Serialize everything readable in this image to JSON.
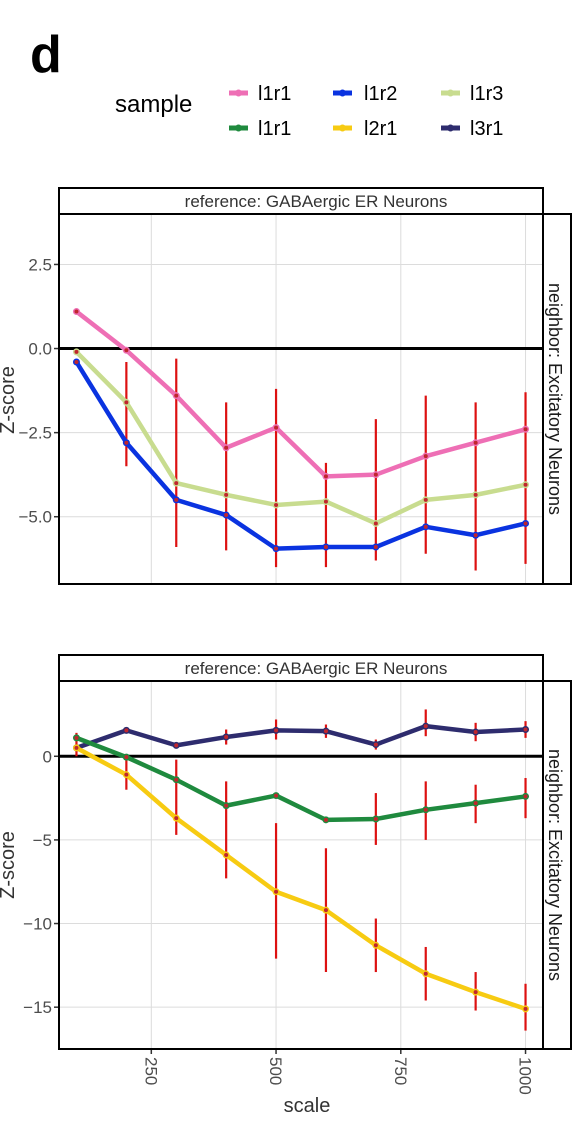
{
  "panel_label": "d",
  "legend": {
    "title": "sample",
    "items": [
      {
        "label": "l1r1",
        "color": "#ee6fb5"
      },
      {
        "label": "l1r2",
        "color": "#0a33e0"
      },
      {
        "label": "l1r3",
        "color": "#c8dc8f"
      },
      {
        "label": "l1r1",
        "color": "#1f8a3e"
      },
      {
        "label": "l2r1",
        "color": "#f7cb12"
      },
      {
        "label": "l3r1",
        "color": "#2e2c6e"
      }
    ]
  },
  "chart_data": [
    {
      "type": "line",
      "strip_top": "reference: GABAergic ER Neurons",
      "strip_right": "neighbor: Excitatory Neurons",
      "ylabel": "Z-score",
      "xlim": [
        65,
        1035
      ],
      "ylim": [
        -7.0,
        4.0
      ],
      "yticks": [
        2.5,
        0.0,
        -2.5,
        -5.0
      ],
      "ytick_labels": [
        "2.5",
        "0.0",
        "−2.5",
        "−5.0"
      ],
      "xgrid": [
        250,
        500,
        750,
        1000
      ],
      "series": [
        {
          "name": "l1r1",
          "color": "#ee6fb5",
          "x": [
            100,
            200,
            300,
            400,
            500,
            600,
            700,
            800,
            900,
            1000
          ],
          "y": [
            1.1,
            -0.05,
            -1.4,
            -2.95,
            -2.35,
            -3.8,
            -3.75,
            -3.2,
            -2.8,
            -2.4
          ],
          "err": [
            0.35,
            0.0,
            0.0,
            0.0,
            0.0,
            0.0,
            0.0,
            0.0,
            0.0,
            0.0
          ]
        },
        {
          "name": "l1r3",
          "color": "#c8dc8f",
          "x": [
            100,
            200,
            300,
            400,
            500,
            600,
            700,
            800,
            900,
            1000
          ],
          "y": [
            -0.1,
            -1.6,
            -4.0,
            -4.35,
            -4.65,
            -4.55,
            -5.2,
            -4.5,
            -4.35,
            -4.05
          ],
          "err": [
            0.0,
            0.0,
            0.0,
            0.0,
            0.0,
            0.0,
            0.0,
            0.0,
            0.0,
            0.0
          ]
        },
        {
          "name": "l1r2",
          "color": "#0a33e0",
          "x": [
            100,
            200,
            300,
            400,
            500,
            600,
            700,
            800,
            900,
            1000
          ],
          "y": [
            -0.4,
            -2.8,
            -4.5,
            -4.95,
            -5.95,
            -5.9,
            -5.9,
            -5.3,
            -5.55,
            -5.2
          ],
          "err": [
            0.45,
            0.65,
            1.4,
            1.1,
            0.55,
            0.55,
            0.45,
            0.75,
            1.0,
            1.15
          ]
        }
      ],
      "error_bars": [
        {
          "x": 200,
          "low": -3.5,
          "high": -0.4
        },
        {
          "x": 300,
          "low": -5.9,
          "high": -0.3
        },
        {
          "x": 400,
          "low": -6.0,
          "high": -1.6
        },
        {
          "x": 500,
          "low": -6.5,
          "high": -1.2
        },
        {
          "x": 600,
          "low": -6.5,
          "high": -3.4
        },
        {
          "x": 700,
          "low": -6.3,
          "high": -2.1
        },
        {
          "x": 800,
          "low": -6.1,
          "high": -1.4
        },
        {
          "x": 900,
          "low": -6.6,
          "high": -1.6
        },
        {
          "x": 1000,
          "low": -6.4,
          "high": -1.3
        }
      ]
    },
    {
      "type": "line",
      "strip_top": "reference: GABAergic ER Neurons",
      "strip_right": "neighbor: Excitatory Neurons",
      "ylabel": "Z-score",
      "xlabel": "scale",
      "xlim": [
        65,
        1035
      ],
      "ylim": [
        -17.5,
        4.5
      ],
      "yticks": [
        0,
        -5,
        -10,
        -15
      ],
      "ytick_labels": [
        "0",
        "−5",
        "−10",
        "−15"
      ],
      "xticks": [
        250,
        500,
        750,
        1000
      ],
      "xtick_labels": [
        "250",
        "500",
        "750",
        "1000"
      ],
      "series": [
        {
          "name": "l3r1",
          "color": "#2e2c6e",
          "x": [
            100,
            200,
            300,
            400,
            500,
            600,
            700,
            800,
            900,
            1000
          ],
          "y": [
            0.5,
            1.55,
            0.65,
            1.15,
            1.55,
            1.5,
            0.7,
            1.8,
            1.45,
            1.6
          ]
        },
        {
          "name": "l1r1",
          "color": "#1f8a3e",
          "x": [
            100,
            200,
            300,
            400,
            500,
            600,
            700,
            800,
            900,
            1000
          ],
          "y": [
            1.1,
            -0.05,
            -1.4,
            -2.95,
            -2.35,
            -3.8,
            -3.75,
            -3.2,
            -2.8,
            -2.4
          ]
        },
        {
          "name": "l2r1",
          "color": "#f7cb12",
          "x": [
            100,
            200,
            300,
            400,
            500,
            600,
            700,
            800,
            900,
            1000
          ],
          "y": [
            0.5,
            -1.1,
            -3.7,
            -5.9,
            -8.1,
            -9.2,
            -11.3,
            -13.0,
            -14.1,
            -15.1
          ]
        }
      ],
      "error_bars": [
        {
          "x": 100,
          "low": 0.0,
          "high": 1.4
        },
        {
          "x": 200,
          "low": -2.0,
          "high": 0.0
        },
        {
          "x": 300,
          "low": -4.7,
          "high": -0.2
        },
        {
          "x": 400,
          "low": -7.3,
          "high": -1.5
        },
        {
          "x": 500,
          "low": -12.1,
          "high": -4.0
        },
        {
          "x": 600,
          "low": -12.9,
          "high": -5.5
        },
        {
          "x": 700,
          "low": -12.9,
          "high": -9.7
        },
        {
          "x": 800,
          "low": -14.6,
          "high": -11.4
        },
        {
          "x": 900,
          "low": -15.2,
          "high": -12.9
        },
        {
          "x": 1000,
          "low": -16.4,
          "high": -13.6
        },
        {
          "x": 400,
          "low": 0.7,
          "high": 1.6
        },
        {
          "x": 500,
          "low": 1.0,
          "high": 2.2
        },
        {
          "x": 600,
          "low": 1.1,
          "high": 1.9
        },
        {
          "x": 700,
          "low": 0.4,
          "high": 1.0
        },
        {
          "x": 800,
          "low": 1.2,
          "high": 2.8
        },
        {
          "x": 900,
          "low": 0.9,
          "high": 2.0
        },
        {
          "x": 1000,
          "low": 1.1,
          "high": 2.1
        },
        {
          "x": 700,
          "low": -5.3,
          "high": -2.2
        },
        {
          "x": 800,
          "low": -5.0,
          "high": -1.5
        },
        {
          "x": 900,
          "low": -4.0,
          "high": -1.7
        },
        {
          "x": 1000,
          "low": -3.7,
          "high": -1.3
        }
      ]
    }
  ]
}
